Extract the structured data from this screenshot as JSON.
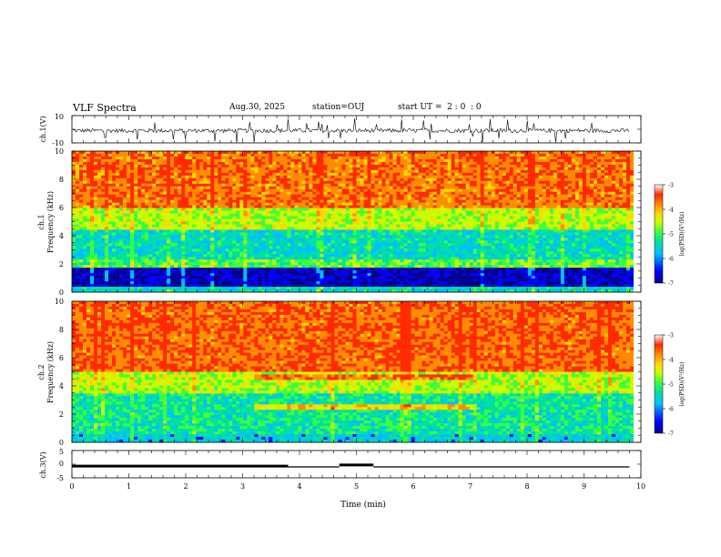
{
  "header": {
    "title": "VLF Spectra",
    "date": "Aug.30, 2025",
    "station": "station=OUJ",
    "start_ut": "start UT =  2 : 0  : 0"
  },
  "chart_data": [
    {
      "type": "line",
      "panel": "ch1-waveform",
      "ylabel": "ch.1(V)",
      "ylim": [
        -10,
        10
      ],
      "y_tick_labels": [
        "10",
        "-10"
      ],
      "description_of_values": "noisy waveform around -1 V with spikes",
      "xlim": [
        0,
        10
      ]
    },
    {
      "type": "heatmap",
      "panel": "ch1-spectrogram",
      "ylabel": "ch.1\nFrequency (kHz)",
      "ylim": [
        0,
        10
      ],
      "y_tick_labels": [
        "0",
        "2",
        "4",
        "6",
        "8",
        "10"
      ],
      "xlim": [
        0,
        10
      ],
      "colorbar": {
        "label": "log(PSD)(V²/Hz)",
        "range": [
          -7,
          -3
        ],
        "tick_labels": [
          "-3",
          "-4",
          "-5",
          "-6",
          "-7"
        ]
      }
    },
    {
      "type": "heatmap",
      "panel": "ch2-spectrogram",
      "ylabel": "ch.2\nFrequency (kHz)",
      "ylim": [
        0,
        10
      ],
      "y_tick_labels": [
        "0",
        "2",
        "4",
        "6",
        "8",
        "10"
      ],
      "xlim": [
        0,
        10
      ],
      "colorbar": {
        "label": "log(PSD)(V²/Hz)",
        "range": [
          -7,
          -3
        ],
        "tick_labels": [
          "-3",
          "-4",
          "-5",
          "-6",
          "-7"
        ]
      }
    },
    {
      "type": "line",
      "panel": "ch3-monitor",
      "ylabel": "ch.3(V)",
      "ylim": [
        -5,
        5
      ],
      "y_tick_labels": [
        "5",
        "0",
        "-5"
      ],
      "xlim": [
        0,
        10
      ],
      "x_tick_labels": [
        "0",
        "1",
        "2",
        "3",
        "4",
        "5",
        "6",
        "7",
        "8",
        "9",
        "10"
      ],
      "xlabel": "Time (min)",
      "segments": [
        {
          "x": [
            0,
            3.8
          ],
          "y": -0.7
        },
        {
          "x": [
            3.8,
            4.7
          ],
          "y": -1.0
        },
        {
          "x": [
            4.7,
            5.3
          ],
          "y": -0.3
        },
        {
          "x": [
            5.3,
            9.8
          ],
          "y": -1.0
        }
      ]
    }
  ],
  "colors": {
    "colormap": [
      "#00008b",
      "#0000ff",
      "#00bfff",
      "#00e0a0",
      "#3cff3c",
      "#c8ff00",
      "#ffd700",
      "#ff8c00",
      "#ff2a00",
      "#ffffff"
    ]
  }
}
